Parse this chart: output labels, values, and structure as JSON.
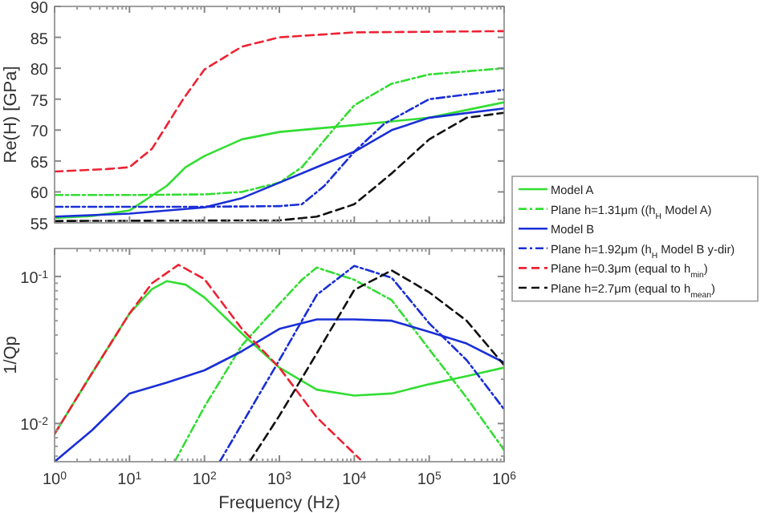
{
  "chart_data": [
    {
      "type": "line",
      "ylabel": "Re(H) [GPa]",
      "log": "x",
      "xlim": [
        1,
        1000000
      ],
      "ylim": [
        55,
        90
      ],
      "yticks": [
        55,
        60,
        65,
        70,
        75,
        80,
        85,
        90
      ],
      "xticks": [
        {
          "value": 1,
          "label": null
        },
        {
          "value": 10,
          "label": null
        },
        {
          "value": 100,
          "label": null
        },
        {
          "value": 1000,
          "label": null
        },
        {
          "value": 10000,
          "label": null
        },
        {
          "value": 100000,
          "label": null
        },
        {
          "value": 1000000,
          "label": null
        }
      ],
      "tick_labels": "y",
      "grid": false,
      "legend": "right",
      "marker": "none",
      "series": [
        {
          "name": "Model A",
          "color": "#33dd33",
          "line_style": "solid",
          "x": [
            1,
            3.16,
            10,
            31.6,
            56,
            100,
            316,
            1000,
            10000,
            100000,
            1000000
          ],
          "values": [
            55.8,
            56.1,
            57,
            61,
            64,
            65.8,
            68.5,
            69.7,
            70.8,
            72,
            74.5
          ]
        },
        {
          "name": "Plane h=1.31μm ((h$_{H}$ Model A)",
          "color": "#33dd33",
          "line_style": "dashdot",
          "x": [
            1,
            10,
            100,
            316,
            1000,
            2000,
            5600,
            10000,
            31600,
            100000,
            1000000
          ],
          "values": [
            59.5,
            59.5,
            59.6,
            60,
            61.5,
            64,
            70.5,
            74,
            77.5,
            79,
            80
          ]
        },
        {
          "name": "Model B",
          "color": "#1a2fd6",
          "line_style": "solid",
          "x": [
            1,
            10,
            100,
            316,
            1000,
            3160,
            10000,
            31600,
            100000,
            1000000
          ],
          "values": [
            56,
            56.5,
            57.5,
            59,
            61.5,
            64,
            66.5,
            70,
            72,
            73.5
          ]
        },
        {
          "name": "Plane h=1.92μm (h$_{H}$ Model B y-dir)",
          "color": "#1a2fd6",
          "line_style": "dashdot",
          "x": [
            1,
            100,
            1000,
            2000,
            4000,
            10000,
            25000,
            100000,
            1000000
          ],
          "values": [
            57.6,
            57.6,
            57.7,
            58,
            61,
            66.5,
            71,
            75,
            76.5
          ]
        },
        {
          "name": "Plane h=0.3μm (equal to h$_{min}$)",
          "color": "#ee2233",
          "line_style": "dashed",
          "x": [
            1,
            5,
            10,
            20,
            52,
            100,
            316,
            1000,
            10000,
            1000000
          ],
          "values": [
            63.3,
            63.7,
            64,
            67,
            75,
            79.8,
            83.5,
            85,
            85.8,
            86
          ]
        },
        {
          "name": "Plane h=2.7μm (equal to h$_{mean}$)",
          "color": "#111111",
          "line_style": "dashed",
          "x": [
            1,
            1000,
            3160,
            10000,
            31600,
            100000,
            316000,
            1000000
          ],
          "values": [
            55.3,
            55.4,
            56,
            58,
            63,
            68.5,
            72,
            72.8
          ]
        }
      ]
    },
    {
      "type": "line",
      "ylabel": "1/Qp",
      "xlabel": "Frequency (Hz)",
      "log": "xy",
      "xlim": [
        1,
        1000000
      ],
      "ylim": [
        0.0055,
        0.155
      ],
      "yticks": [
        {
          "value": 0.01,
          "label": "10$^{-2}$"
        },
        {
          "value": 0.1,
          "label": "10$^{-1}$"
        }
      ],
      "xticks": [
        {
          "value": 1,
          "label": "10$^{0}$"
        },
        {
          "value": 10,
          "label": "10$^{1}$"
        },
        {
          "value": 100,
          "label": "10$^{2}$"
        },
        {
          "value": 1000,
          "label": "10$^{3}$"
        },
        {
          "value": 10000,
          "label": "10$^{4}$"
        },
        {
          "value": 100000,
          "label": "10$^{5}$"
        },
        {
          "value": 1000000,
          "label": "10$^{6}$"
        }
      ],
      "grid": false,
      "marker": "none",
      "series": [
        {
          "color": "#33dd33",
          "line_style": "solid",
          "x": [
            1,
            3.16,
            10,
            20,
            31.6,
            56,
            100,
            316,
            1000,
            3160,
            10000,
            31600,
            100000,
            316000,
            1000000
          ],
          "values": [
            0.0085,
            0.022,
            0.056,
            0.082,
            0.093,
            0.088,
            0.072,
            0.041,
            0.024,
            0.017,
            0.0155,
            0.016,
            0.0185,
            0.021,
            0.024
          ]
        },
        {
          "color": "#33dd33",
          "line_style": "dashdot",
          "x": [
            40,
            100,
            316,
            1000,
            2000,
            3160,
            10000,
            31600,
            100000,
            316000,
            1000000
          ],
          "values": [
            0.0055,
            0.013,
            0.034,
            0.065,
            0.095,
            0.115,
            0.095,
            0.069,
            0.032,
            0.015,
            0.0066
          ]
        },
        {
          "color": "#1a2fd6",
          "line_style": "solid",
          "x": [
            1,
            3.16,
            10,
            31.6,
            100,
            316,
            1000,
            3160,
            10000,
            31600,
            100000,
            316000,
            1000000
          ],
          "values": [
            0.0055,
            0.009,
            0.016,
            0.019,
            0.023,
            0.031,
            0.044,
            0.051,
            0.051,
            0.05,
            0.042,
            0.035,
            0.026
          ]
        },
        {
          "color": "#1a2fd6",
          "line_style": "dashdot",
          "x": [
            160,
            1000,
            3160,
            10000,
            31600,
            100000,
            316000,
            1000000
          ],
          "values": [
            0.0055,
            0.027,
            0.075,
            0.118,
            0.098,
            0.048,
            0.027,
            0.0125
          ]
        },
        {
          "color": "#ee2233",
          "line_style": "dashed",
          "x": [
            1,
            3.16,
            10,
            20,
            45,
            100,
            316,
            1000,
            3160,
            12000
          ],
          "values": [
            0.0085,
            0.022,
            0.056,
            0.09,
            0.12,
            0.096,
            0.044,
            0.024,
            0.011,
            0.0057
          ]
        },
        {
          "color": "#111111",
          "line_style": "dashed",
          "x": [
            400,
            1000,
            3160,
            10000,
            31600,
            100000,
            316000,
            1000000
          ],
          "values": [
            0.0055,
            0.0113,
            0.03,
            0.081,
            0.11,
            0.078,
            0.05,
            0.025
          ]
        }
      ]
    }
  ]
}
